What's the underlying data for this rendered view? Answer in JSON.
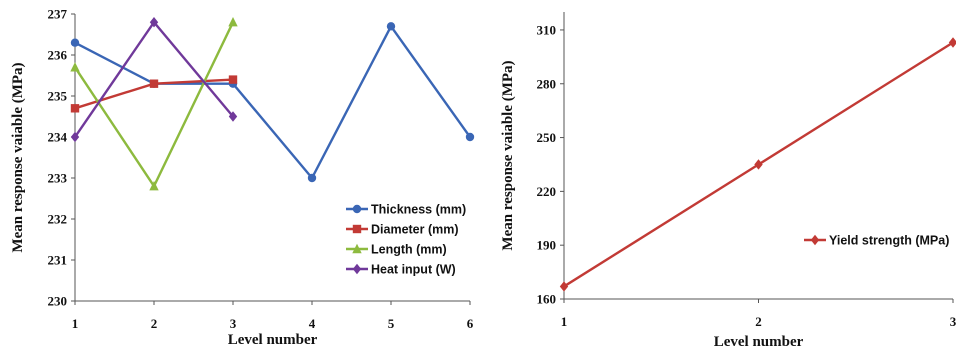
{
  "chart_data": [
    {
      "type": "line",
      "xlabel": "Level number",
      "ylabel": "Mean response vaiable (MPa)",
      "xlim": [
        1,
        6
      ],
      "ylim": [
        230,
        237
      ],
      "xticks": [
        "1",
        "2",
        "3",
        "4",
        "5",
        "6"
      ],
      "yticks": [
        "230",
        "231",
        "232",
        "233",
        "234",
        "235",
        "236",
        "237"
      ],
      "legend_position": "bottom-right",
      "grid": false,
      "series": [
        {
          "name": "Thickness (mm)",
          "color": "#3a66b5",
          "marker": "circle",
          "x": [
            1,
            2,
            3,
            4,
            5,
            6
          ],
          "values": [
            236.3,
            235.3,
            235.3,
            233.0,
            236.7,
            234.0
          ]
        },
        {
          "name": "Diameter (mm)",
          "color": "#c23a35",
          "marker": "square",
          "x": [
            1,
            2,
            3
          ],
          "values": [
            234.7,
            235.3,
            235.4
          ]
        },
        {
          "name": "Length (mm)",
          "color": "#8dba3e",
          "marker": "triangle",
          "x": [
            1,
            2,
            3
          ],
          "values": [
            235.7,
            232.8,
            236.8
          ]
        },
        {
          "name": "Heat input (W)",
          "color": "#70399a",
          "marker": "diamond",
          "x": [
            1,
            2,
            3
          ],
          "values": [
            234.0,
            236.8,
            234.5
          ]
        }
      ]
    },
    {
      "type": "line",
      "xlabel": "Level number",
      "ylabel": "Mean response vaiable (MPa)",
      "xlim": [
        1,
        3
      ],
      "ylim": [
        160,
        320
      ],
      "xticks": [
        "1",
        "2",
        "3"
      ],
      "yticks": [
        "160",
        "190",
        "220",
        "250",
        "280",
        "310"
      ],
      "legend_position": "right",
      "grid": false,
      "series": [
        {
          "name": "Yield strength (MPa)",
          "color": "#c23a35",
          "marker": "diamond",
          "x": [
            1,
            2,
            3
          ],
          "values": [
            167,
            235,
            303
          ]
        }
      ]
    }
  ]
}
